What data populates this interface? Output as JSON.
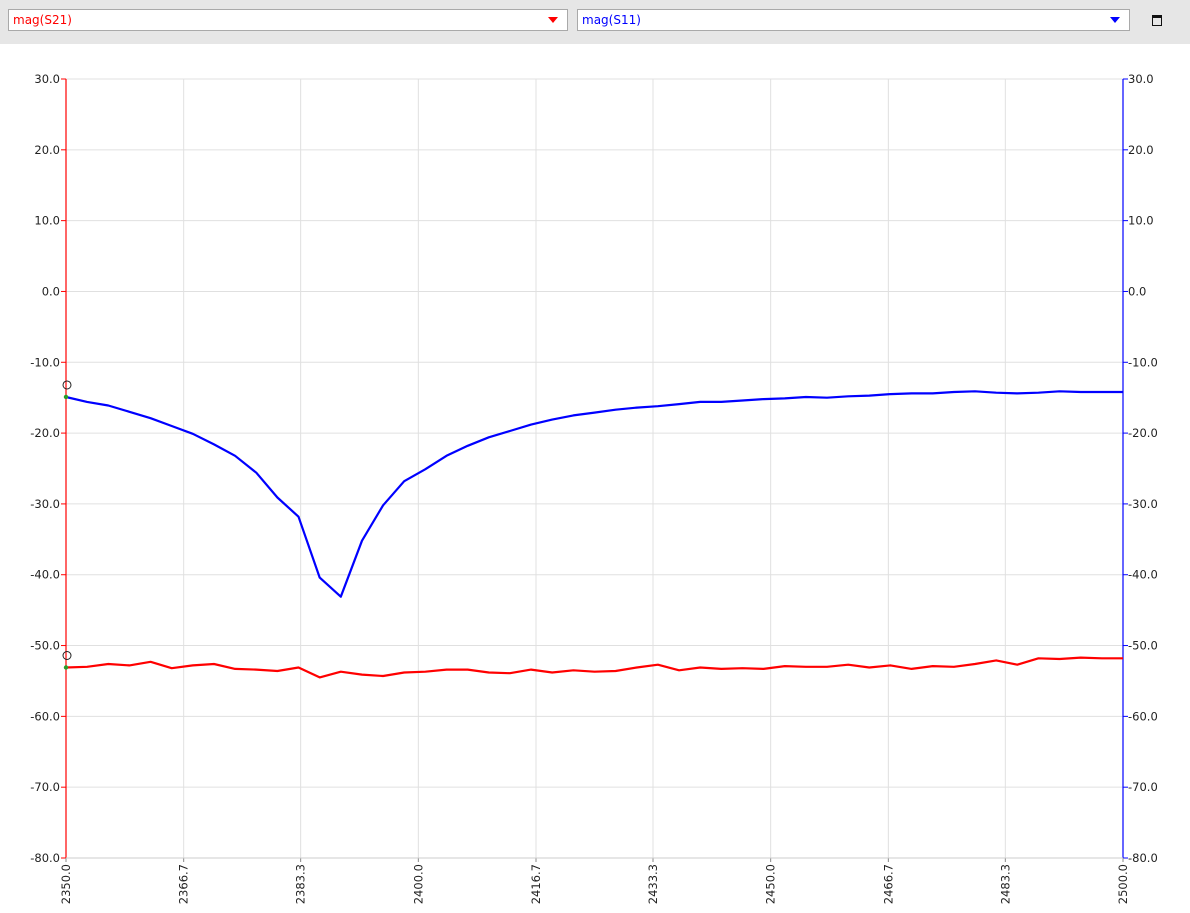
{
  "toolbar": {
    "left_trace": {
      "label": "mag(S21)",
      "color": "#ff0000"
    },
    "right_trace": {
      "label": "mag(S11)",
      "color": "#0000ff"
    },
    "maximize_icon": "window-maximize-icon"
  },
  "chart_data": {
    "type": "line",
    "title": "",
    "xlabel": "",
    "ylabel": "",
    "xlim": [
      2350.0,
      2500.0
    ],
    "ylim": [
      -80.0,
      30.0
    ],
    "x_ticks": [
      "2350.0",
      "2366.7",
      "2383.3",
      "2400.0",
      "2416.7",
      "2433.3",
      "2450.0",
      "2466.7",
      "2483.3",
      "2500.0"
    ],
    "y_ticks_left": [
      "30.0",
      "20.0",
      "10.0",
      "0.0",
      "-10.0",
      "-20.0",
      "-30.0",
      "-40.0",
      "-50.0",
      "-60.0",
      "-70.0",
      "-80.0"
    ],
    "y_ticks_right": [
      "30.0",
      "20.0",
      "10.0",
      "0.0",
      "-10.0",
      "-20.0",
      "-30.0",
      "-40.0",
      "-50.0",
      "-60.0",
      "-70.0",
      "-80.0"
    ],
    "grid": true,
    "x": [
      2350.0,
      2353.0,
      2356.0,
      2359.0,
      2362.0,
      2365.0,
      2368.0,
      2371.0,
      2374.0,
      2377.0,
      2380.0,
      2383.0,
      2386.0,
      2389.0,
      2392.0,
      2395.0,
      2398.0,
      2401.0,
      2404.0,
      2407.0,
      2410.0,
      2413.0,
      2416.0,
      2419.0,
      2422.0,
      2425.0,
      2428.0,
      2431.0,
      2434.0,
      2437.0,
      2440.0,
      2443.0,
      2446.0,
      2449.0,
      2452.0,
      2455.0,
      2458.0,
      2461.0,
      2464.0,
      2467.0,
      2470.0,
      2473.0,
      2476.0,
      2479.0,
      2482.0,
      2485.0,
      2488.0,
      2491.0,
      2494.0,
      2497.0,
      2500.0
    ],
    "series": [
      {
        "name": "mag(S21)",
        "axis": "left",
        "color": "#ff0000",
        "values": [
          -53.1,
          -53.0,
          -52.6,
          -52.8,
          -52.3,
          -53.2,
          -52.8,
          -52.6,
          -53.3,
          -53.4,
          -53.6,
          -53.1,
          -54.5,
          -53.7,
          -54.1,
          -54.3,
          -53.8,
          -53.7,
          -53.4,
          -53.4,
          -53.8,
          -53.9,
          -53.4,
          -53.8,
          -53.5,
          -53.7,
          -53.6,
          -53.1,
          -52.7,
          -53.5,
          -53.1,
          -53.3,
          -53.2,
          -53.3,
          -52.9,
          -53.0,
          -53.0,
          -52.7,
          -53.1,
          -52.8,
          -53.3,
          -52.9,
          -53.0,
          -52.6,
          -52.1,
          -52.7,
          -51.8,
          -51.9,
          -51.7,
          -51.8,
          -51.8
        ]
      },
      {
        "name": "mag(S11)",
        "axis": "right",
        "color": "#0000ff",
        "values": [
          -14.9,
          -15.6,
          -16.1,
          -17.0,
          -17.9,
          -19.0,
          -20.1,
          -21.6,
          -23.2,
          -25.6,
          -29.1,
          -31.8,
          -40.4,
          -43.1,
          -35.2,
          -30.2,
          -26.8,
          -25.1,
          -23.2,
          -21.8,
          -20.6,
          -19.7,
          -18.8,
          -18.1,
          -17.5,
          -17.1,
          -16.7,
          -16.4,
          -16.2,
          -15.9,
          -15.6,
          -15.6,
          -15.4,
          -15.2,
          -15.1,
          -14.9,
          -15.0,
          -14.8,
          -14.7,
          -14.5,
          -14.4,
          -14.4,
          -14.2,
          -14.1,
          -14.3,
          -14.4,
          -14.3,
          -14.1,
          -14.2,
          -14.2,
          -14.2
        ]
      }
    ]
  }
}
